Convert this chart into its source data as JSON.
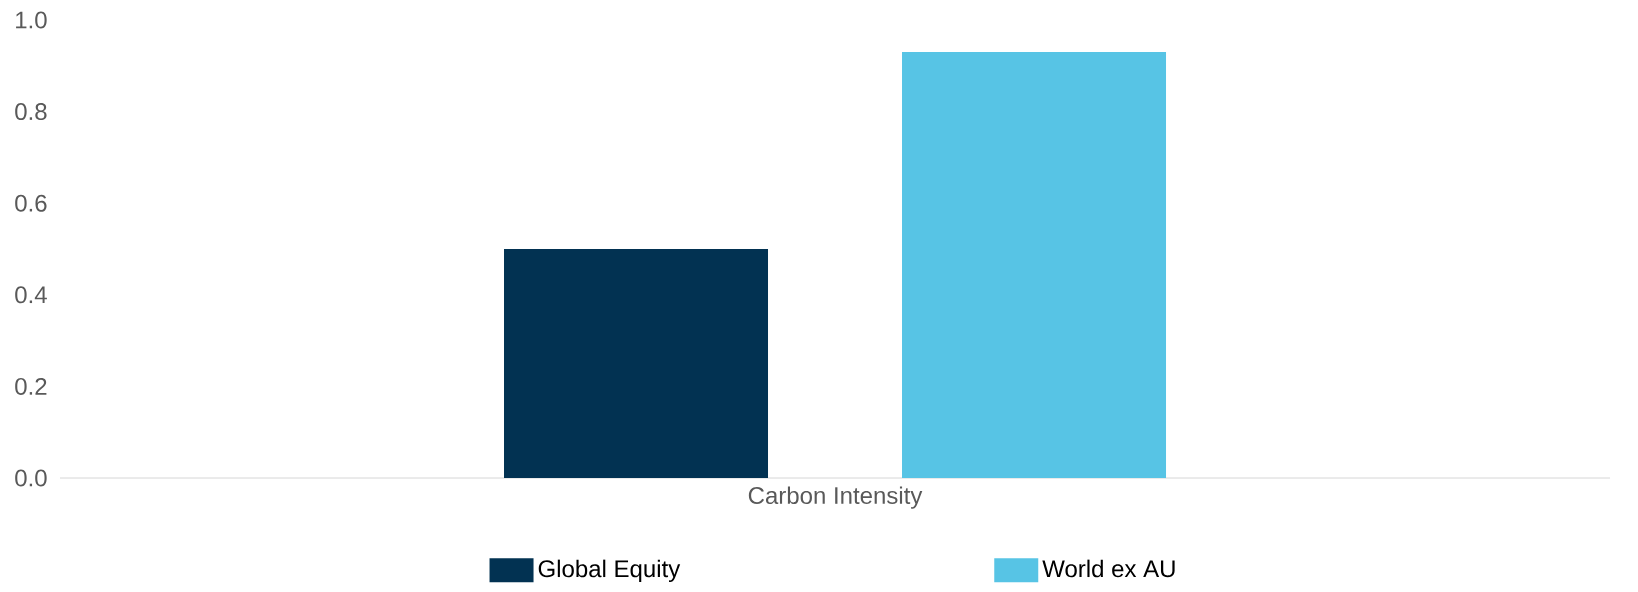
{
  "chart_data": {
    "type": "bar",
    "categories": [
      "Carbon Intensity"
    ],
    "series": [
      {
        "name": "Global Equity",
        "color": "#023252",
        "values": [
          0.5
        ]
      },
      {
        "name": "World ex AU",
        "color": "#57c4e5",
        "values": [
          0.93
        ]
      }
    ],
    "ylim": [
      0,
      1.0
    ],
    "yticks": [
      {
        "value": 0,
        "label": "0.0"
      },
      {
        "value": 0.2,
        "label": "0.2"
      },
      {
        "value": 0.4,
        "label": "0.4"
      },
      {
        "value": 0.6,
        "label": "0.6"
      },
      {
        "value": 0.8,
        "label": "0.8"
      },
      {
        "value": 1.0,
        "label": "1.0"
      }
    ],
    "legend": "bottom"
  }
}
